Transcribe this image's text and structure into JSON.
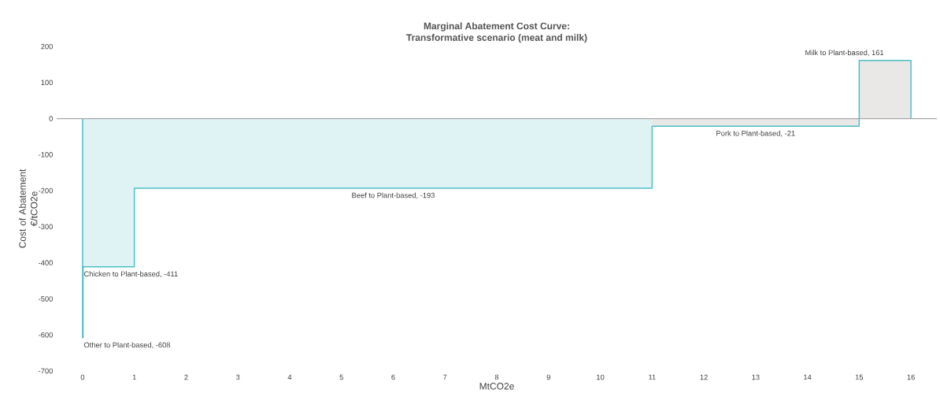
{
  "chart_data": {
    "type": "area",
    "title": "Marginal Abatement Cost Curve:",
    "subtitle": "Transformative scenario (meat and milk)",
    "xlabel": "MtCO2e",
    "ylabel": "Cost of Abatement €/tCO2e",
    "series": [
      {
        "color": "#dff2f4",
        "x": [
          0,
          0,
          0.01,
          0.01,
          1,
          1,
          11,
          11
        ],
        "values": [
          0,
          -608,
          -608,
          -411,
          -411,
          -193,
          -193,
          0
        ]
      },
      {
        "color": "#e9e8e6",
        "x": [
          11,
          11,
          15,
          15,
          16,
          16
        ],
        "values": [
          0,
          -21,
          -21,
          161,
          161,
          0
        ]
      },
      {
        "type": "line",
        "color": "#4bbfc4",
        "x": [
          0,
          0,
          0.01,
          0.01,
          1,
          1,
          11,
          11,
          15,
          15,
          16,
          16
        ],
        "values": [
          0,
          -608,
          -608,
          -411,
          -411,
          -193,
          -193,
          -21,
          -21,
          161,
          161,
          0
        ]
      }
    ],
    "xlim": [
      -0.5,
      16.5
    ],
    "ylim": [
      -700,
      200
    ],
    "xticks": [
      0,
      1,
      2,
      3,
      4,
      5,
      6,
      7,
      8,
      9,
      10,
      11,
      12,
      13,
      14,
      15,
      16
    ],
    "yticks": [
      -700,
      -600,
      -500,
      -400,
      -300,
      -200,
      -100,
      0,
      100,
      200
    ],
    "ref_lines": [
      {
        "axis": "y",
        "value": 0,
        "color": "#a6a6a6"
      }
    ],
    "annotations": [
      {
        "text": "Other to Plant-based, -608",
        "x": 0,
        "y": -608
      },
      {
        "text": "Chicken to Plant-based, -411",
        "x": 0,
        "y": -411
      },
      {
        "text": "Beef to Plant-based, -193",
        "x": 6,
        "y": -193
      },
      {
        "text": "Pork to Plant-based, -21",
        "x": 13,
        "y": -21
      },
      {
        "text": "Milk to Plant-based, 161",
        "x": 15.5,
        "y": 161
      }
    ]
  }
}
